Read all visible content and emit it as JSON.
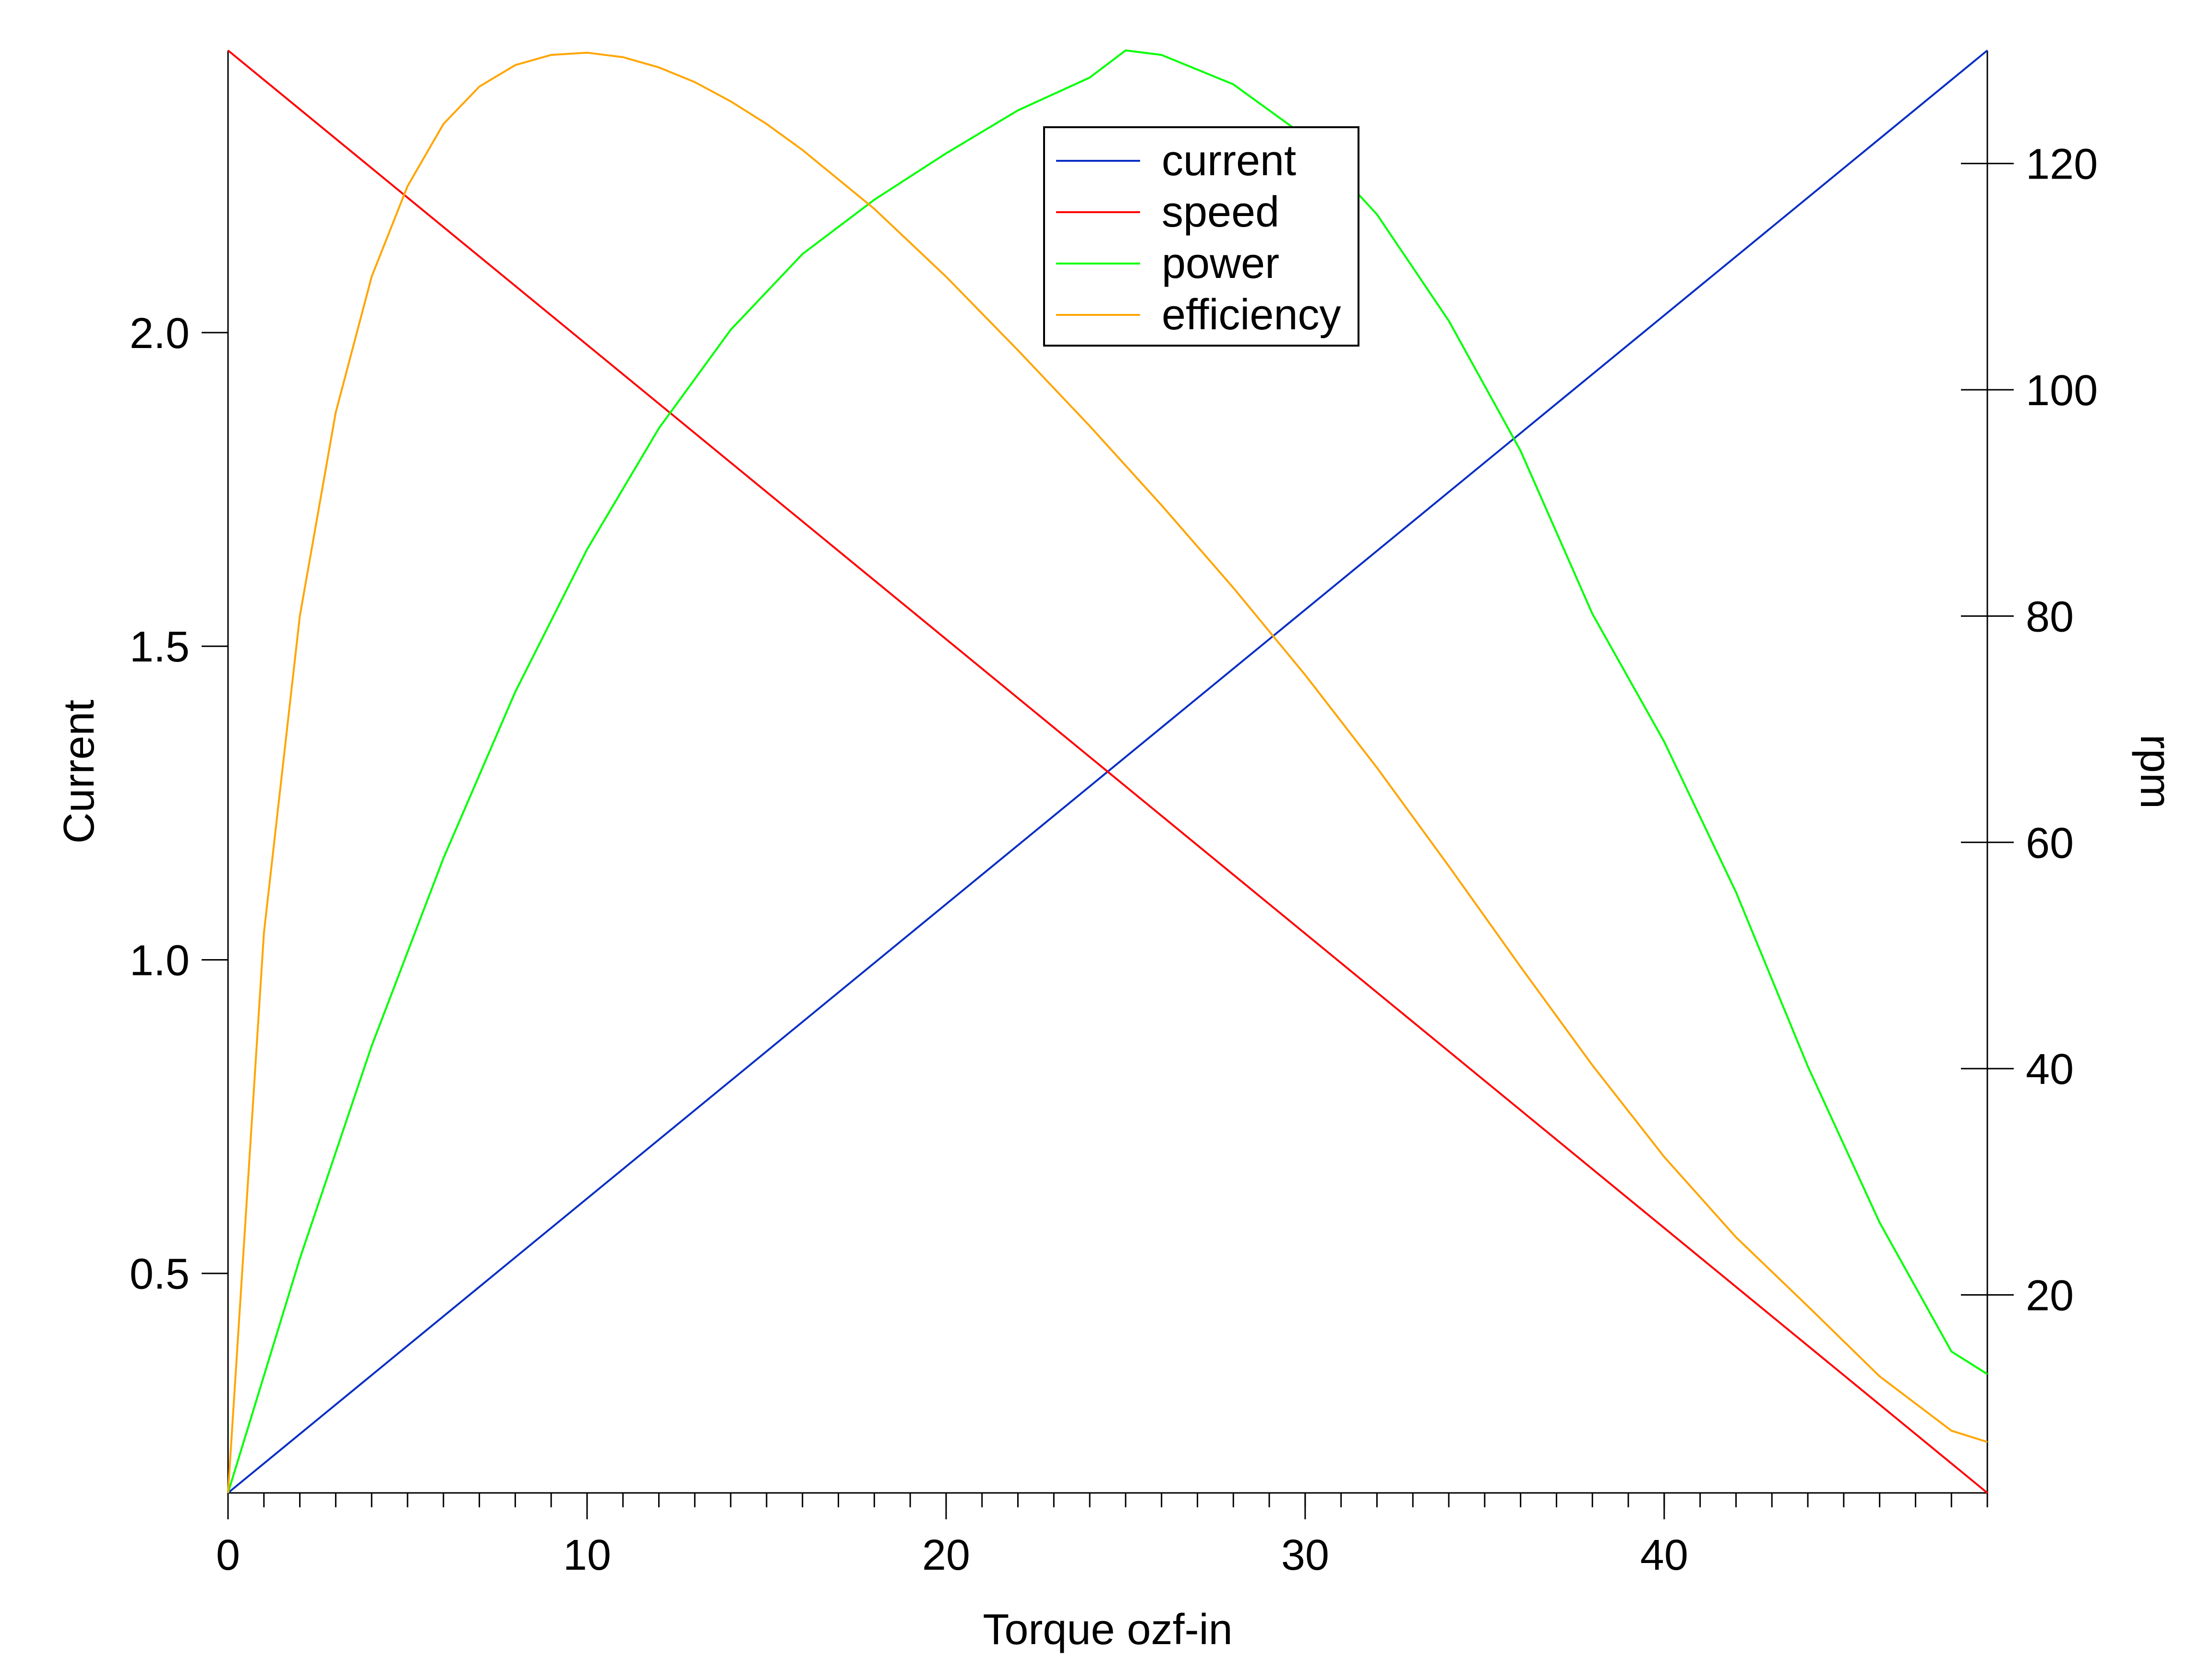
{
  "chart_data": {
    "type": "line",
    "xlabel": "Torque ozf-in",
    "ylabel_left": "Current",
    "ylabel_right": "rpm",
    "xlim": [
      0,
      49
    ],
    "ylim_left": [
      0.15,
      2.45
    ],
    "ylim_right": [
      2.5,
      130
    ],
    "x_ticks": [
      0,
      10,
      20,
      30,
      40
    ],
    "x_minor_step": 1,
    "y_left_ticks": [
      "0.5",
      "1.0",
      "1.5",
      "2.0"
    ],
    "y_left_tick_values": [
      0.5,
      1.0,
      1.5,
      2.0
    ],
    "y_right_ticks": [
      "20",
      "40",
      "60",
      "80",
      "100",
      "120"
    ],
    "y_right_tick_values": [
      20,
      40,
      60,
      80,
      100,
      120
    ],
    "grid": false,
    "legend_position": "top-center",
    "series": [
      {
        "name": "current",
        "axis": "left",
        "color": "#0a2fc4",
        "x": [
          0,
          49
        ],
        "y": [
          0.15,
          2.45
        ]
      },
      {
        "name": "speed",
        "axis": "right",
        "color": "#ff0000",
        "x": [
          0,
          49
        ],
        "y": [
          130,
          2.5
        ]
      },
      {
        "name": "power",
        "axis": "right",
        "color": "#00ff00",
        "x": [
          0,
          2,
          4,
          6,
          8,
          10,
          12,
          14,
          16,
          18,
          20,
          22,
          24,
          25,
          26,
          28,
          30,
          32,
          34,
          36,
          38,
          40,
          42,
          44,
          46,
          48,
          49
        ],
        "y": [
          2.5,
          23.2,
          42.0,
          58.6,
          73.3,
          85.9,
          96.6,
          105.3,
          112.0,
          116.8,
          120.9,
          124.7,
          127.6,
          130.0,
          129.6,
          127.0,
          122.4,
          115.5,
          106.1,
          94.6,
          80.2,
          68.9,
          55.6,
          40.2,
          26.4,
          15.0,
          13.0
        ]
      },
      {
        "name": "efficiency",
        "axis": "right",
        "color": "#ffa500",
        "x": [
          0,
          1,
          2,
          3,
          4,
          5,
          6,
          7,
          8,
          9,
          10,
          11,
          12,
          13,
          14,
          15,
          16,
          18,
          20,
          22,
          24,
          26,
          28,
          30,
          32,
          34,
          36,
          38,
          40,
          42,
          44,
          46,
          48,
          49
        ],
        "y": [
          2.5,
          52.0,
          80.0,
          98.0,
          110.0,
          118.0,
          123.5,
          126.8,
          128.7,
          129.6,
          129.8,
          129.4,
          128.5,
          127.2,
          125.5,
          123.5,
          121.2,
          116.0,
          110.0,
          103.5,
          96.8,
          89.8,
          82.5,
          74.8,
          66.6,
          57.9,
          49.0,
          40.3,
          32.2,
          25.1,
          19.0,
          12.8,
          8.0,
          7.0
        ]
      }
    ]
  }
}
